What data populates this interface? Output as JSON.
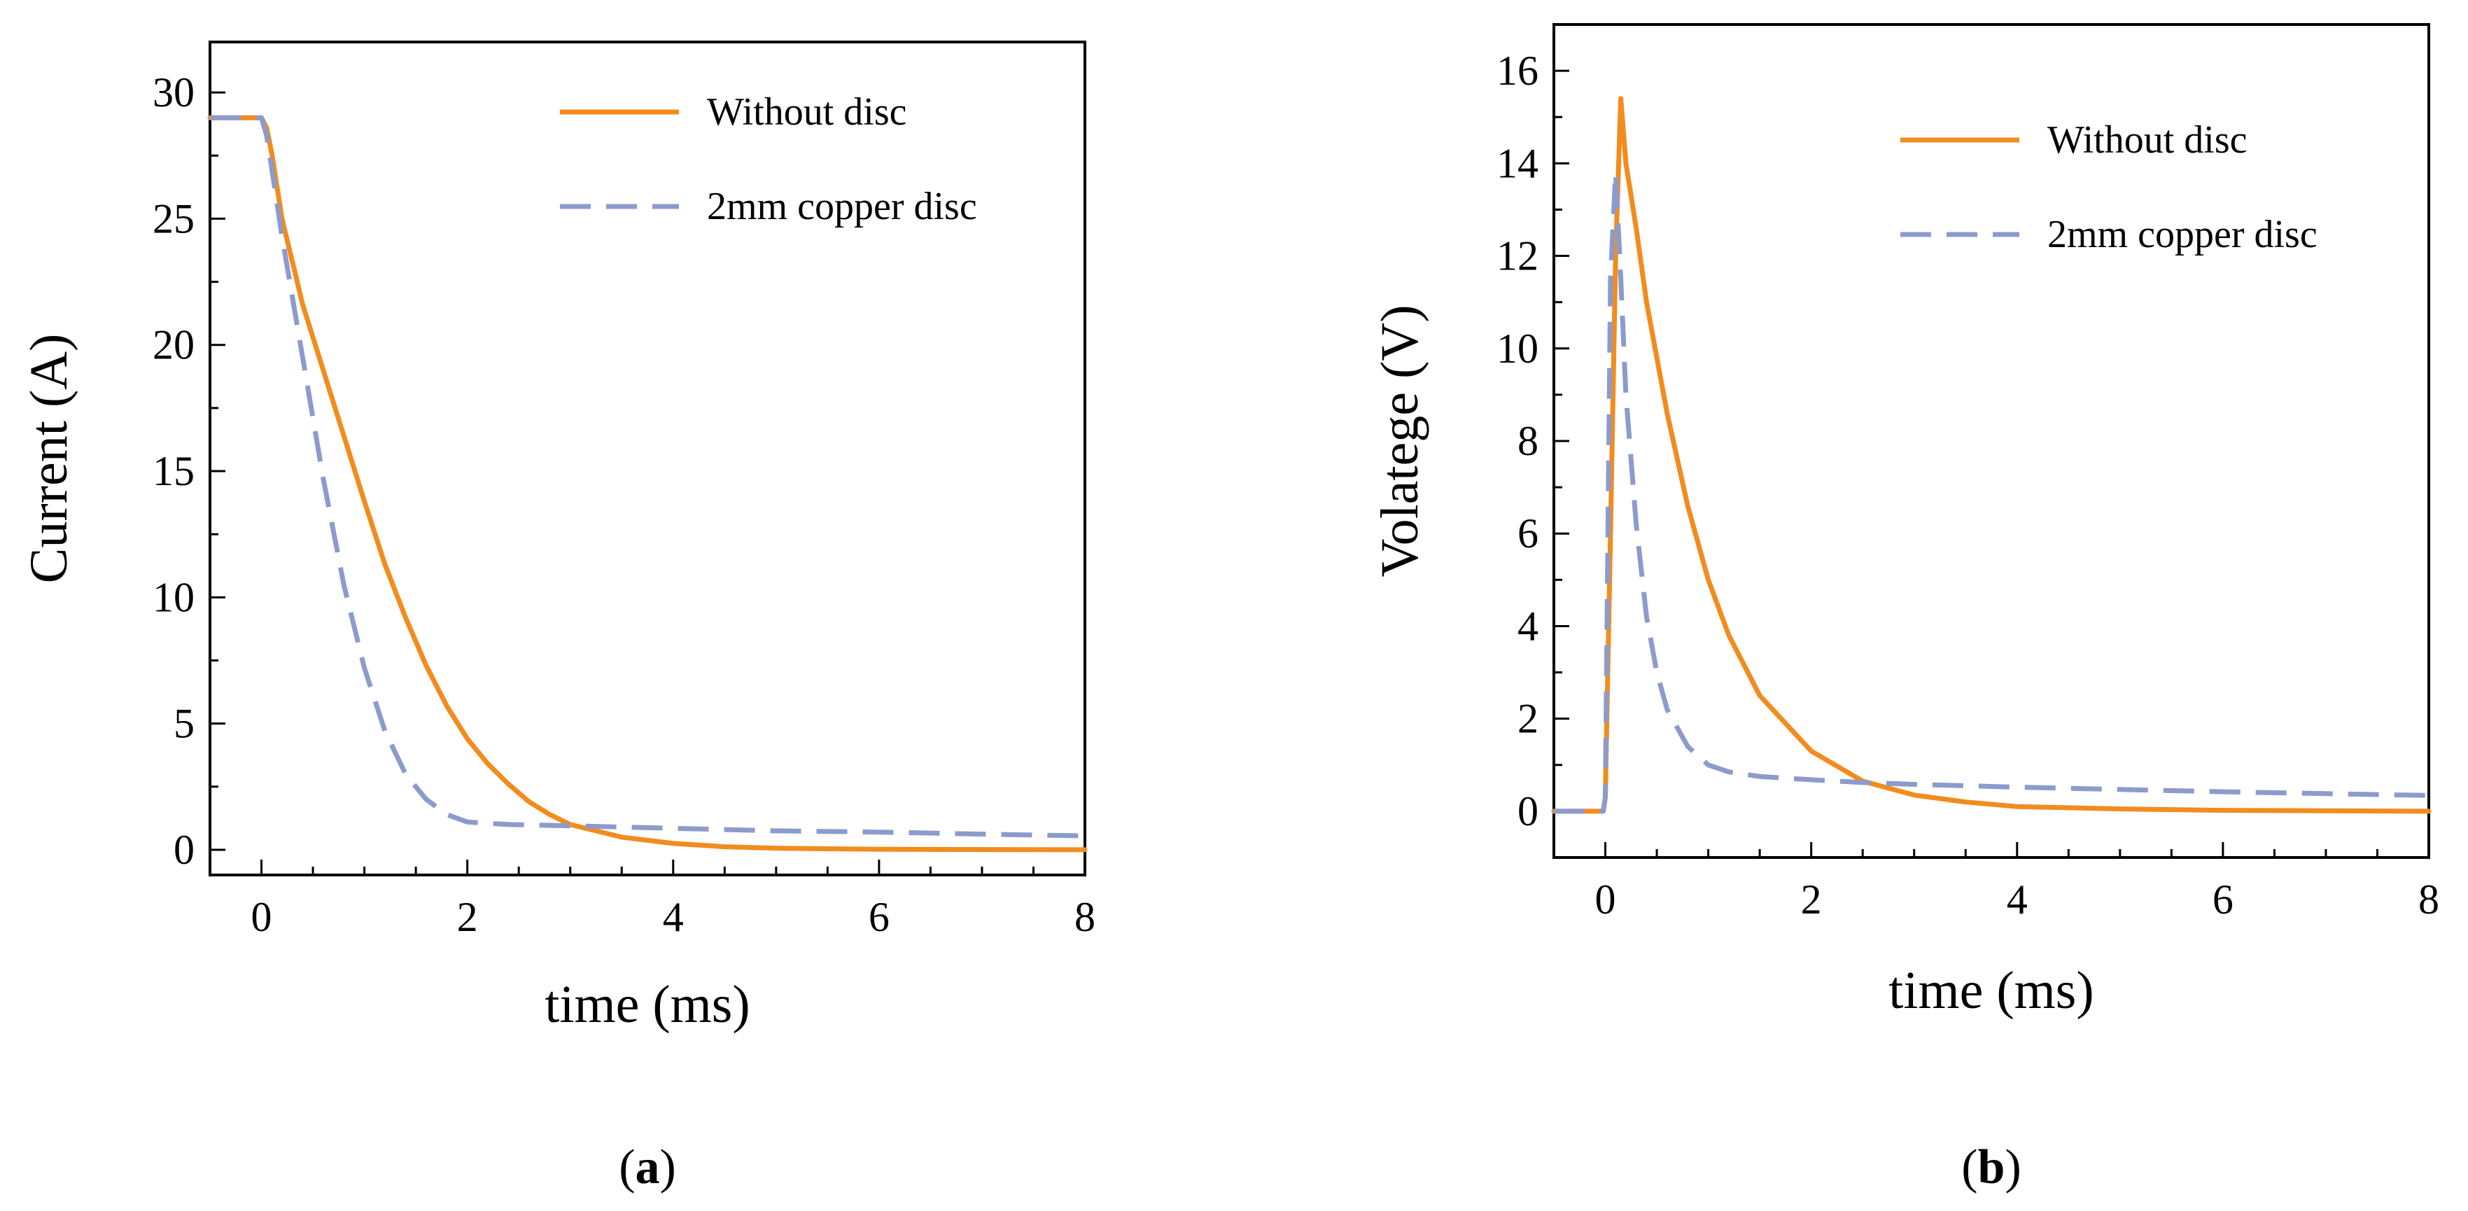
{
  "chart_data": [
    {
      "type": "line",
      "panel_label": "a",
      "xlabel": "time (ms)",
      "ylabel": "Current (A)",
      "xlim": [
        -0.5,
        8
      ],
      "ylim": [
        -1,
        32
      ],
      "xticks": [
        0,
        2,
        4,
        6,
        8
      ],
      "yticks": [
        0,
        5,
        10,
        15,
        20,
        25,
        30
      ],
      "legend_position": "top-right",
      "grid": false,
      "series": [
        {
          "name": "Without disc",
          "color": "#f28c1e",
          "style": "solid",
          "x": [
            -0.5,
            0.0,
            0.05,
            0.1,
            0.2,
            0.4,
            0.6,
            0.8,
            1.0,
            1.2,
            1.4,
            1.6,
            1.8,
            2.0,
            2.2,
            2.4,
            2.6,
            2.8,
            3.0,
            3.5,
            4.0,
            4.5,
            5.0,
            6.0,
            7.0,
            8.0
          ],
          "y": [
            29,
            29,
            28.6,
            27.6,
            25.0,
            21.6,
            19.0,
            16.4,
            13.8,
            11.3,
            9.2,
            7.3,
            5.7,
            4.4,
            3.4,
            2.6,
            1.9,
            1.4,
            1.0,
            0.5,
            0.25,
            0.12,
            0.06,
            0.02,
            0.01,
            0.0
          ]
        },
        {
          "name": "2mm copper disc",
          "color": "#8c9bcc",
          "style": "dashed",
          "x": [
            -0.5,
            0.0,
            0.05,
            0.1,
            0.2,
            0.4,
            0.6,
            0.8,
            1.0,
            1.2,
            1.4,
            1.6,
            1.8,
            2.0,
            2.4,
            3.0,
            4.0,
            5.0,
            6.0,
            7.0,
            8.0
          ],
          "y": [
            29,
            29,
            28.3,
            27.0,
            24.3,
            19.5,
            14.7,
            10.5,
            7.2,
            4.7,
            3.0,
            2.0,
            1.4,
            1.1,
            1.0,
            0.95,
            0.85,
            0.75,
            0.7,
            0.62,
            0.55
          ]
        }
      ]
    },
    {
      "type": "line",
      "panel_label": "b",
      "xlabel": "time (ms)",
      "ylabel": "Volatege (V)",
      "xlim": [
        -0.5,
        8
      ],
      "ylim": [
        -1,
        17
      ],
      "xticks": [
        0,
        2,
        4,
        6,
        8
      ],
      "yticks": [
        0,
        2,
        4,
        6,
        8,
        10,
        12,
        14,
        16
      ],
      "legend_position": "top-right",
      "grid": false,
      "series": [
        {
          "name": "Without disc",
          "color": "#f28c1e",
          "style": "solid",
          "x": [
            -0.5,
            -0.02,
            0.0,
            0.05,
            0.1,
            0.15,
            0.2,
            0.3,
            0.4,
            0.6,
            0.8,
            1.0,
            1.2,
            1.5,
            2.0,
            2.5,
            3.0,
            3.5,
            4.0,
            5.0,
            6.0,
            7.0,
            8.0
          ],
          "y": [
            0,
            0,
            0.3,
            6.0,
            12.0,
            15.4,
            14.0,
            12.6,
            11.0,
            8.6,
            6.6,
            5.0,
            3.8,
            2.5,
            1.3,
            0.65,
            0.35,
            0.2,
            0.1,
            0.05,
            0.02,
            0.01,
            0.0
          ]
        },
        {
          "name": "2mm copper disc",
          "color": "#8c9bcc",
          "style": "dashed",
          "x": [
            -0.5,
            -0.02,
            0.0,
            0.05,
            0.1,
            0.15,
            0.2,
            0.3,
            0.4,
            0.5,
            0.6,
            0.8,
            1.0,
            1.2,
            1.5,
            2.0,
            2.5,
            3.0,
            4.0,
            5.0,
            6.0,
            7.0,
            8.0
          ],
          "y": [
            0,
            0,
            0.3,
            11.5,
            13.8,
            11.5,
            9.0,
            6.2,
            4.2,
            3.0,
            2.2,
            1.4,
            1.0,
            0.85,
            0.75,
            0.68,
            0.62,
            0.58,
            0.52,
            0.47,
            0.42,
            0.38,
            0.34
          ]
        }
      ]
    }
  ]
}
